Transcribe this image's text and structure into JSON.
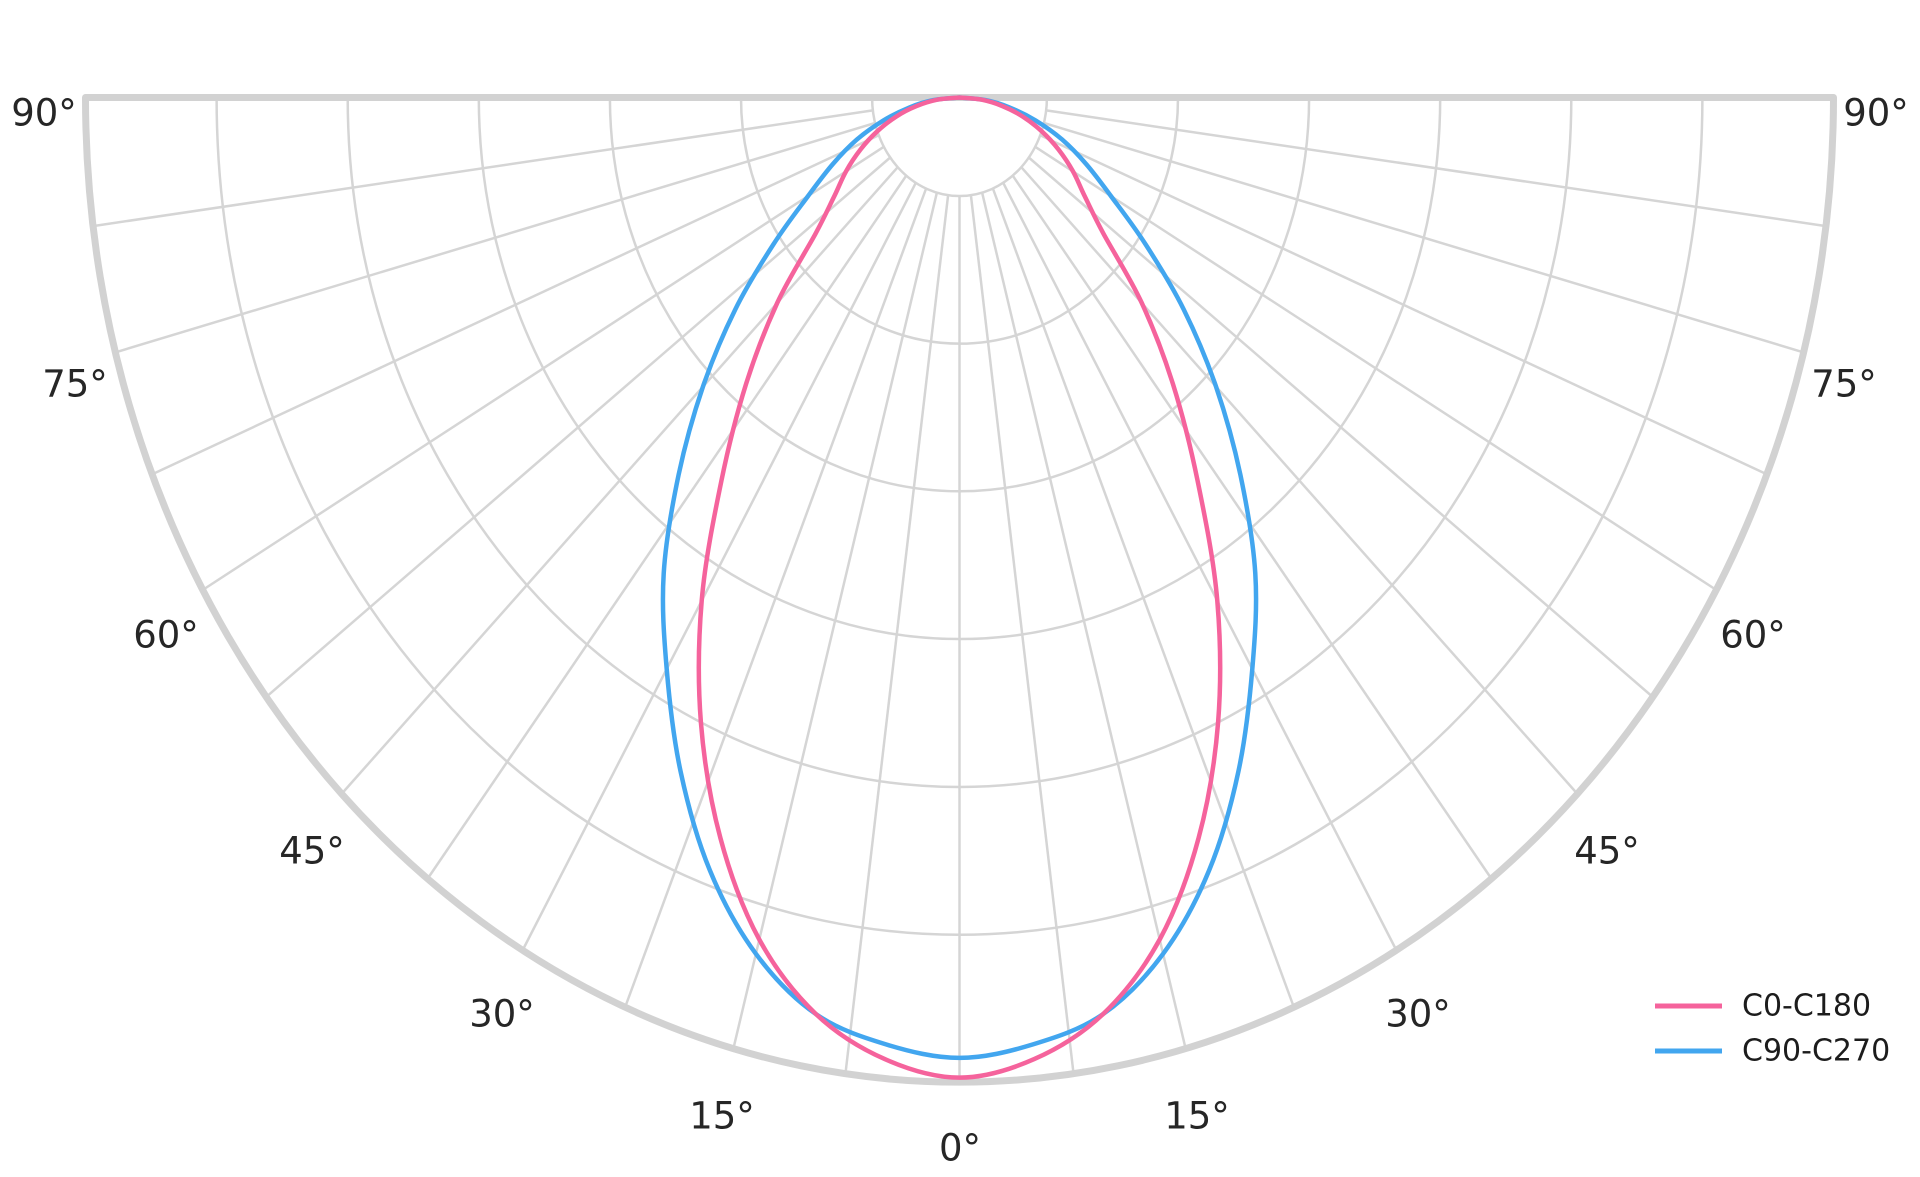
{
  "figure": {
    "background": "#ffffff",
    "text_color": "#262626"
  },
  "chart_data": {
    "type": "line",
    "subtype": "polar-photometric-intensity-half-plot",
    "title": "",
    "angle_unit": "degrees",
    "angle_ticks": [
      "0°",
      "15°",
      "30°",
      "45°",
      "60°",
      "75°",
      "90°"
    ],
    "angle_tick_values": [
      0,
      15,
      30,
      45,
      60,
      75,
      90
    ],
    "angle_tick_labels_left_to_right": [
      "90°",
      "75°",
      "60°",
      "45°",
      "30°",
      "15°",
      "0°",
      "15°",
      "30°",
      "45°",
      "60°",
      "75°",
      "90°"
    ],
    "radial_axis": {
      "labels_visible": false,
      "scale": "relative intensity 0-1",
      "ring_fractions": [
        0.1,
        0.25,
        0.4,
        0.55,
        0.7,
        0.85,
        1.0
      ]
    },
    "grid": {
      "radial_line_step_deg": 7.5,
      "radial_line_inner_fraction": 0.1,
      "color": "#d5d5d5",
      "spine_color": "#d2d2d2",
      "grid_on": true
    },
    "series": [
      {
        "name": "C0-C180",
        "color": "#f5639c",
        "angles_deg": [
          0,
          5,
          10,
          15,
          20,
          25,
          30,
          35,
          40,
          45,
          50,
          55,
          60,
          65,
          70,
          75,
          80,
          85,
          90
        ],
        "intensity_rel": [
          0.995,
          0.98,
          0.945,
          0.885,
          0.8,
          0.7,
          0.59,
          0.475,
          0.38,
          0.295,
          0.215,
          0.175,
          0.15,
          0.125,
          0.1,
          0.075,
          0.05,
          0.025,
          0.0
        ]
      },
      {
        "name": "C90-C270",
        "color": "#42a6ef",
        "angles_deg": [
          0,
          5,
          10,
          15,
          20,
          25,
          30,
          35,
          40,
          45,
          50,
          55,
          60,
          65,
          70,
          75,
          80,
          85,
          90
        ],
        "intensity_rel": [
          0.975,
          0.965,
          0.945,
          0.9,
          0.835,
          0.755,
          0.67,
          0.59,
          0.5,
          0.415,
          0.335,
          0.26,
          0.2,
          0.16,
          0.125,
          0.09,
          0.058,
          0.03,
          0.0
        ]
      }
    ],
    "legend_position": "lower right",
    "legend_frame": false
  }
}
